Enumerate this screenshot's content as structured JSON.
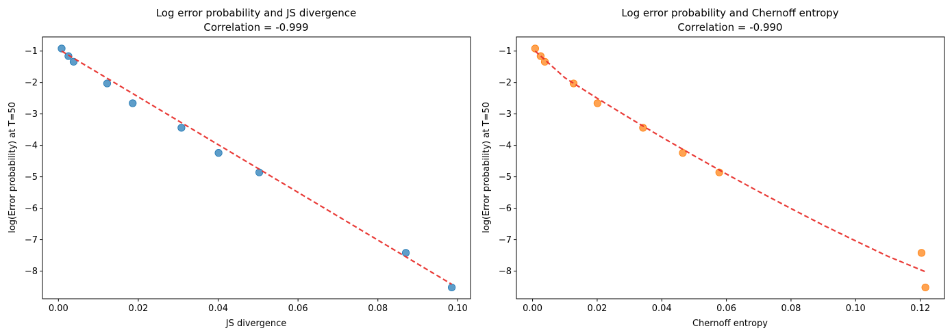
{
  "chart_data": [
    {
      "type": "scatter",
      "title_line1": "Log error probability and JS divergence",
      "title_line2": "Correlation = -0.999",
      "xlabel": "JS divergence",
      "ylabel": "log(Error probability) at T=50",
      "xlim": [
        -0.004,
        0.1032
      ],
      "ylim": [
        -8.88,
        -0.55
      ],
      "xticks": [
        0.0,
        0.02,
        0.04,
        0.06,
        0.08,
        0.1
      ],
      "xtick_labels": [
        "0.00",
        "0.02",
        "0.04",
        "0.06",
        "0.08",
        "0.10"
      ],
      "yticks": [
        -1,
        -2,
        -3,
        -4,
        -5,
        -6,
        -7,
        -8
      ],
      "ytick_labels": [
        "−1",
        "−2",
        "−3",
        "−4",
        "−5",
        "−6",
        "−7",
        "−8"
      ],
      "point_color": "#1f77b4",
      "fit_color": "#e8302c",
      "points": [
        {
          "x": 0.0008,
          "y": -0.92
        },
        {
          "x": 0.0025,
          "y": -1.16
        },
        {
          "x": 0.0038,
          "y": -1.34
        },
        {
          "x": 0.0122,
          "y": -2.03
        },
        {
          "x": 0.0186,
          "y": -2.66
        },
        {
          "x": 0.0308,
          "y": -3.44
        },
        {
          "x": 0.0401,
          "y": -4.24
        },
        {
          "x": 0.0503,
          "y": -4.86
        },
        {
          "x": 0.087,
          "y": -7.42
        },
        {
          "x": 0.0985,
          "y": -8.52
        }
      ],
      "fit_line": [
        {
          "x": 0.0008,
          "y": -1.0
        },
        {
          "x": 0.0985,
          "y": -8.42
        }
      ]
    },
    {
      "type": "scatter",
      "title_line1": "Log error probability and Chernoff entropy",
      "title_line2": "Correlation = -0.990",
      "xlabel": "Chernoff entropy",
      "ylabel": "log(Error probability) at T=50",
      "xlim": [
        -0.005,
        0.1275
      ],
      "ylim": [
        -8.88,
        -0.55
      ],
      "xticks": [
        0.0,
        0.02,
        0.04,
        0.06,
        0.08,
        0.1,
        0.12
      ],
      "xtick_labels": [
        "0.00",
        "0.02",
        "0.04",
        "0.06",
        "0.08",
        "0.10",
        "0.12"
      ],
      "yticks": [
        -1,
        -2,
        -3,
        -4,
        -5,
        -6,
        -7,
        -8
      ],
      "ytick_labels": [
        "−1",
        "−2",
        "−3",
        "−4",
        "−5",
        "−6",
        "−7",
        "−8"
      ],
      "point_color": "#ff7f0e",
      "fit_color": "#e8302c",
      "points": [
        {
          "x": 0.0008,
          "y": -0.92
        },
        {
          "x": 0.0025,
          "y": -1.16
        },
        {
          "x": 0.0038,
          "y": -1.34
        },
        {
          "x": 0.0127,
          "y": -2.03
        },
        {
          "x": 0.0201,
          "y": -2.66
        },
        {
          "x": 0.0342,
          "y": -3.44
        },
        {
          "x": 0.0465,
          "y": -4.24
        },
        {
          "x": 0.0578,
          "y": -4.86
        },
        {
          "x": 0.1204,
          "y": -7.42
        },
        {
          "x": 0.1216,
          "y": -8.52
        }
      ],
      "fit_line": [
        {
          "x": 0.0008,
          "y": -1.0
        },
        {
          "x": 0.01,
          "y": -1.85
        },
        {
          "x": 0.02,
          "y": -2.5
        },
        {
          "x": 0.03,
          "y": -3.13
        },
        {
          "x": 0.04,
          "y": -3.74
        },
        {
          "x": 0.05,
          "y": -4.33
        },
        {
          "x": 0.06,
          "y": -4.91
        },
        {
          "x": 0.07,
          "y": -5.47
        },
        {
          "x": 0.08,
          "y": -6.01
        },
        {
          "x": 0.09,
          "y": -6.54
        },
        {
          "x": 0.1,
          "y": -7.04
        },
        {
          "x": 0.11,
          "y": -7.53
        },
        {
          "x": 0.1216,
          "y": -8.02
        }
      ]
    }
  ]
}
